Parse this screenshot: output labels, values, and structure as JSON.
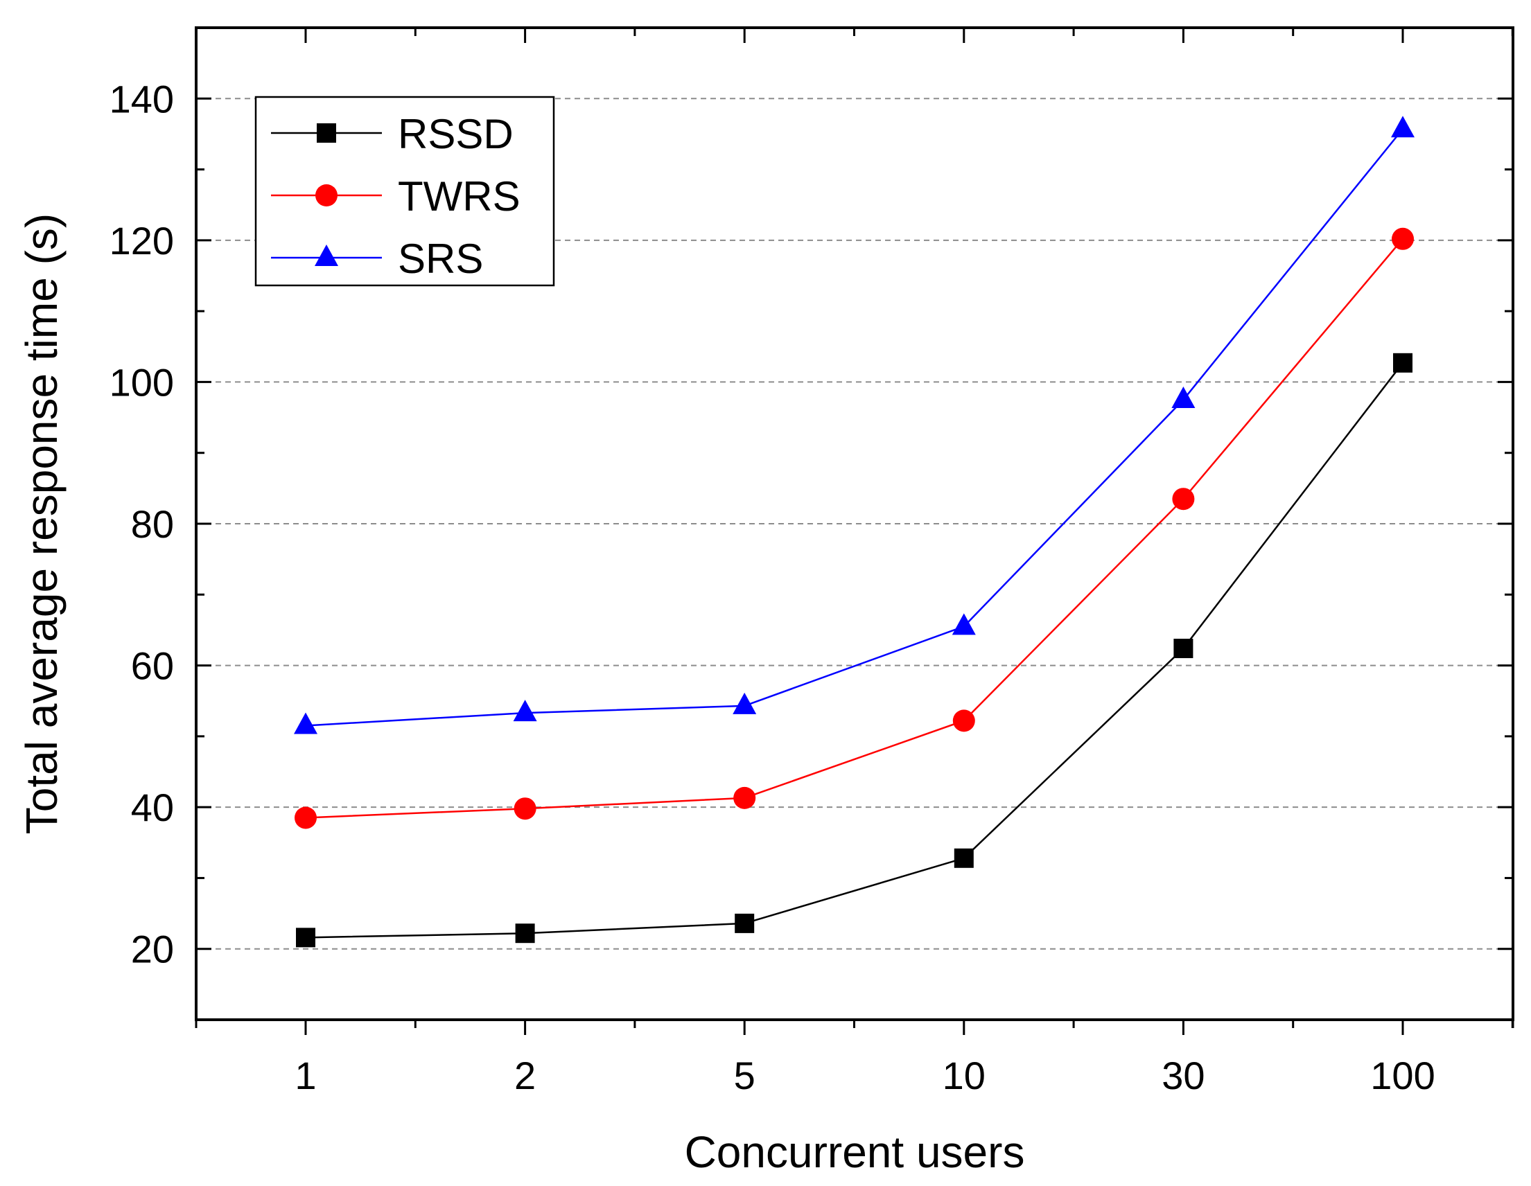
{
  "chart_data": {
    "type": "line",
    "title": "",
    "xlabel": "Concurrent users",
    "ylabel": "Total average response time (s)",
    "categories": [
      "1",
      "2",
      "5",
      "10",
      "30",
      "100"
    ],
    "ylim": [
      10,
      150
    ],
    "yticks": [
      20,
      40,
      60,
      80,
      100,
      120,
      140
    ],
    "grid": "horizontal dashed",
    "legend_position": "top-left",
    "series": [
      {
        "name": "RSSD",
        "color": "#000000",
        "marker": "square",
        "values": [
          21.6,
          22.2,
          23.6,
          32.8,
          62.4,
          102.7
        ]
      },
      {
        "name": "TWRS",
        "color": "#ff0000",
        "marker": "circle",
        "values": [
          38.5,
          39.8,
          41.3,
          52.2,
          83.5,
          120.2
        ]
      },
      {
        "name": "SRS",
        "color": "#0000ff",
        "marker": "triangle",
        "values": [
          51.5,
          53.3,
          54.3,
          65.5,
          97.5,
          135.7
        ]
      }
    ]
  }
}
